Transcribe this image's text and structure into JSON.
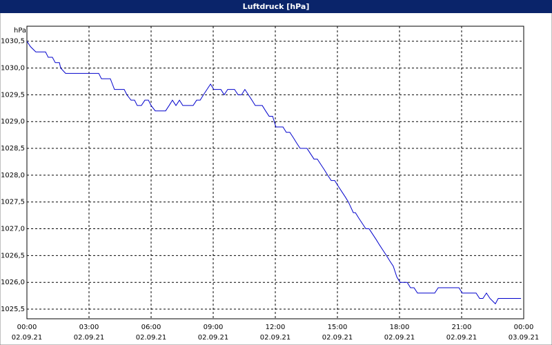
{
  "chart_data": {
    "type": "line",
    "title": "Luftdruck [hPa]",
    "y_unit": "hPa",
    "x": [
      0,
      0.17,
      0.43,
      0.9,
      1.03,
      1.23,
      1.37,
      1.57,
      1.63,
      1.87,
      3.47,
      3.6,
      4.03,
      4.13,
      4.23,
      4.7,
      4.83,
      5.03,
      5.2,
      5.33,
      5.53,
      5.7,
      5.87,
      6.0,
      6.2,
      6.7,
      6.87,
      7.03,
      7.2,
      7.37,
      7.53,
      8.03,
      8.2,
      8.37,
      8.53,
      8.7,
      8.87,
      9.03,
      9.37,
      9.53,
      9.7,
      10.03,
      10.2,
      10.37,
      10.53,
      10.7,
      10.87,
      11.03,
      11.37,
      11.53,
      11.7,
      11.87,
      12.03,
      12.37,
      12.53,
      12.7,
      12.87,
      13.03,
      13.2,
      13.53,
      13.7,
      13.87,
      14.03,
      14.2,
      14.37,
      14.53,
      14.7,
      14.87,
      15.03,
      15.2,
      15.37,
      15.53,
      15.77,
      15.87,
      16.03,
      16.2,
      16.37,
      16.53,
      16.7,
      16.87,
      17.03,
      17.2,
      17.37,
      17.53,
      17.7,
      17.87,
      18.03,
      18.37,
      18.53,
      18.7,
      18.87,
      19.7,
      19.87,
      20.87,
      21.03,
      21.7,
      21.87,
      22.03,
      22.2,
      22.37,
      22.63,
      22.77,
      23.87
    ],
    "series": [
      {
        "color": "#0000cc",
        "values": [
          1030.5,
          1030.4,
          1030.3,
          1030.3,
          1030.2,
          1030.2,
          1030.1,
          1030.1,
          1030.0,
          1029.9,
          1029.9,
          1029.8,
          1029.8,
          1029.7,
          1029.6,
          1029.6,
          1029.5,
          1029.4,
          1029.4,
          1029.3,
          1029.3,
          1029.4,
          1029.4,
          1029.3,
          1029.2,
          1029.2,
          1029.3,
          1029.4,
          1029.3,
          1029.4,
          1029.3,
          1029.3,
          1029.4,
          1029.4,
          1029.5,
          1029.6,
          1029.7,
          1029.6,
          1029.6,
          1029.5,
          1029.6,
          1029.6,
          1029.5,
          1029.5,
          1029.6,
          1029.5,
          1029.4,
          1029.3,
          1029.3,
          1029.2,
          1029.1,
          1029.1,
          1028.9,
          1028.9,
          1028.8,
          1028.8,
          1028.7,
          1028.6,
          1028.5,
          1028.5,
          1028.4,
          1028.3,
          1028.3,
          1028.2,
          1028.1,
          1028.0,
          1027.9,
          1027.9,
          1027.8,
          1027.7,
          1027.6,
          1027.5,
          1027.3,
          1027.3,
          1027.2,
          1027.1,
          1027.0,
          1027.0,
          1026.9,
          1026.8,
          1026.7,
          1026.6,
          1026.5,
          1026.4,
          1026.3,
          1026.1,
          1026.0,
          1026.0,
          1025.9,
          1025.9,
          1025.8,
          1025.8,
          1025.9,
          1025.9,
          1025.8,
          1025.8,
          1025.7,
          1025.7,
          1025.8,
          1025.7,
          1025.6,
          1025.7,
          1025.7
        ]
      }
    ],
    "xlim": [
      0,
      24
    ],
    "xticks": [
      {
        "value": 0,
        "label": "00:00"
      },
      {
        "value": 3,
        "label": "03:00"
      },
      {
        "value": 6,
        "label": "06:00"
      },
      {
        "value": 9,
        "label": "09:00"
      },
      {
        "value": 12,
        "label": "12:00"
      },
      {
        "value": 15,
        "label": "15:00"
      },
      {
        "value": 18,
        "label": "18:00"
      },
      {
        "value": 21,
        "label": "21:00"
      },
      {
        "value": 24,
        "label": "00:00"
      }
    ],
    "xtick_dates": [
      "02.09.21",
      "02.09.21",
      "02.09.21",
      "02.09.21",
      "02.09.21",
      "02.09.21",
      "02.09.21",
      "02.09.21",
      "03.09.21"
    ],
    "ylim": [
      1025.32,
      1030.78
    ],
    "yticks": [
      {
        "value": 1025.5,
        "label": "1025,5"
      },
      {
        "value": 1026,
        "label": "1026,0"
      },
      {
        "value": 1026.5,
        "label": "1026,5"
      },
      {
        "value": 1027,
        "label": "1027,0"
      },
      {
        "value": 1027.5,
        "label": "1027,5"
      },
      {
        "value": 1028,
        "label": "1028,0"
      },
      {
        "value": 1028.5,
        "label": "1028,5"
      },
      {
        "value": 1029,
        "label": "1029,0"
      },
      {
        "value": 1029.5,
        "label": "1029,5"
      },
      {
        "value": 1030,
        "label": "1030,0"
      },
      {
        "value": 1030.5,
        "label": "1030,5"
      }
    ],
    "grid": true
  }
}
